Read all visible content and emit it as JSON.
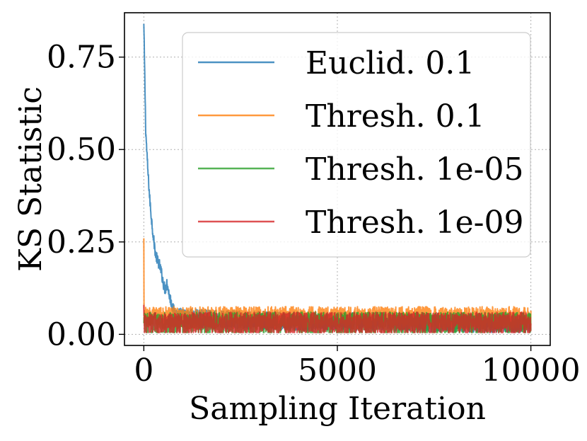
{
  "chart_data": {
    "type": "line",
    "title": "",
    "xlabel": "Sampling Iteration",
    "ylabel": "KS Statistic",
    "xlim": [
      -500,
      10500
    ],
    "ylim": [
      -0.03,
      0.87
    ],
    "xticks": [
      0,
      5000,
      10000
    ],
    "xtick_labels": [
      "0",
      "5000",
      "10000"
    ],
    "yticks": [
      0.0,
      0.25,
      0.5,
      0.75
    ],
    "ytick_labels": [
      "0.00",
      "0.25",
      "0.50",
      "0.75"
    ],
    "grid": true,
    "legend_position": "top-right",
    "series": [
      {
        "name": "Euclid. 0.1",
        "color": "#1f77b4",
        "x": [
          0,
          50,
          100,
          150,
          200,
          250,
          300,
          350,
          400,
          450,
          500,
          550,
          600,
          650,
          700,
          750,
          800,
          850,
          900,
          1000,
          2000,
          4000,
          6000,
          8000,
          10000
        ],
        "y": [
          0.84,
          0.55,
          0.45,
          0.37,
          0.31,
          0.26,
          0.22,
          0.2,
          0.19,
          0.17,
          0.14,
          0.12,
          0.14,
          0.11,
          0.09,
          0.07,
          0.06,
          0.055,
          0.05,
          0.045,
          0.04,
          0.035,
          0.035,
          0.03,
          0.03
        ],
        "noise_level": 0.025
      },
      {
        "name": "Thresh. 0.1",
        "color": "#ff7f0e",
        "x": [
          0,
          1,
          10,
          10000
        ],
        "y": [
          0.26,
          0.06,
          0.045,
          0.045
        ],
        "noise_level": 0.03
      },
      {
        "name": "Thresh. 1e-05",
        "color": "#2ca02c",
        "x": [
          0,
          10000
        ],
        "y": [
          0.03,
          0.03
        ],
        "noise_level": 0.03
      },
      {
        "name": "Thresh. 1e-09",
        "color": "#d62728",
        "x": [
          0,
          5,
          10000
        ],
        "y": [
          0.08,
          0.03,
          0.03
        ],
        "noise_level": 0.03
      }
    ]
  }
}
